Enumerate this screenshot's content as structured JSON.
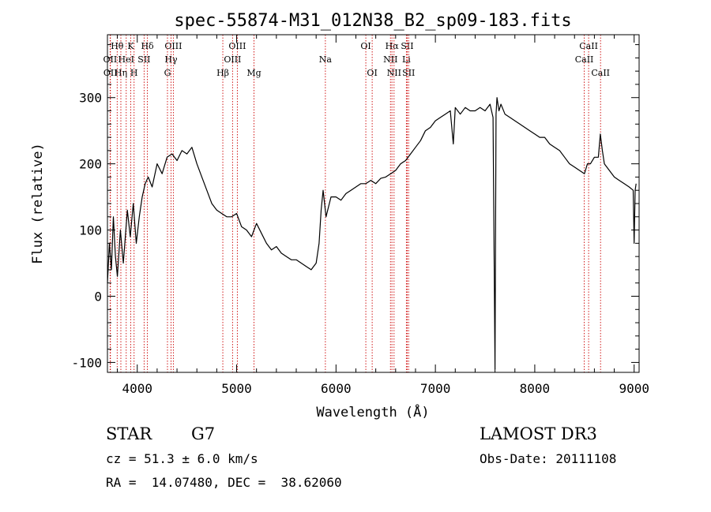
{
  "chart_data": {
    "type": "line",
    "title": "spec-55874-M31_012N38_B2_sp09-183.fits",
    "xlabel": "Wavelength (Å)",
    "ylabel": "Flux (relative)",
    "xlim": [
      3700,
      9050
    ],
    "ylim": [
      -115,
      395
    ],
    "xticks": [
      4000,
      5000,
      6000,
      7000,
      8000,
      9000
    ],
    "yticks": [
      -100,
      0,
      100,
      200,
      300
    ],
    "grid": false,
    "series": [
      {
        "name": "flux",
        "x": [
          3700,
          3720,
          3740,
          3760,
          3780,
          3800,
          3830,
          3860,
          3900,
          3930,
          3960,
          3990,
          4020,
          4050,
          4080,
          4110,
          4150,
          4200,
          4250,
          4300,
          4350,
          4400,
          4450,
          4500,
          4550,
          4600,
          4650,
          4700,
          4750,
          4800,
          4850,
          4900,
          4950,
          5000,
          5050,
          5100,
          5150,
          5200,
          5250,
          5300,
          5350,
          5400,
          5450,
          5500,
          5550,
          5600,
          5650,
          5700,
          5750,
          5800,
          5830,
          5850,
          5870,
          5900,
          5950,
          6000,
          6050,
          6100,
          6150,
          6200,
          6250,
          6300,
          6350,
          6400,
          6450,
          6500,
          6550,
          6600,
          6650,
          6700,
          6750,
          6800,
          6850,
          6900,
          6950,
          7000,
          7050,
          7100,
          7150,
          7180,
          7200,
          7250,
          7300,
          7350,
          7400,
          7450,
          7500,
          7550,
          7580,
          7600,
          7610,
          7620,
          7640,
          7660,
          7700,
          7750,
          7800,
          7850,
          7900,
          7950,
          8000,
          8050,
          8100,
          8150,
          8200,
          8250,
          8300,
          8350,
          8400,
          8450,
          8500,
          8530,
          8560,
          8600,
          8640,
          8660,
          8680,
          8700,
          8750,
          8800,
          8850,
          8900,
          8950,
          8990,
          9000,
          9010,
          9020
        ],
        "values": [
          20,
          80,
          40,
          120,
          60,
          30,
          100,
          50,
          130,
          90,
          140,
          80,
          120,
          150,
          170,
          180,
          165,
          200,
          185,
          210,
          215,
          205,
          220,
          215,
          225,
          200,
          180,
          160,
          140,
          130,
          125,
          120,
          120,
          125,
          105,
          100,
          90,
          110,
          95,
          80,
          70,
          75,
          65,
          60,
          55,
          55,
          50,
          45,
          40,
          50,
          80,
          130,
          160,
          120,
          150,
          150,
          145,
          155,
          160,
          165,
          170,
          170,
          175,
          170,
          178,
          180,
          185,
          190,
          200,
          205,
          215,
          225,
          235,
          250,
          255,
          265,
          270,
          275,
          280,
          230,
          285,
          275,
          285,
          280,
          280,
          285,
          280,
          290,
          270,
          -110,
          275,
          300,
          280,
          290,
          275,
          270,
          265,
          260,
          255,
          250,
          245,
          240,
          240,
          230,
          225,
          220,
          210,
          200,
          195,
          190,
          185,
          200,
          200,
          210,
          210,
          245,
          220,
          200,
          190,
          180,
          175,
          170,
          165,
          160,
          80,
          160,
          170
        ],
        "color": "#000000"
      }
    ],
    "line_markers": [
      {
        "label": "Hθ",
        "wavelength": 3798,
        "row": 1
      },
      {
        "label": "OII",
        "wavelength": 3727,
        "row": 2
      },
      {
        "label": "OII",
        "wavelength": 3730,
        "row": 3
      },
      {
        "label": "HeI",
        "wavelength": 3889,
        "row": 2
      },
      {
        "label": "Hη",
        "wavelength": 3835,
        "row": 3
      },
      {
        "label": "K",
        "wavelength": 3934,
        "row": 1
      },
      {
        "label": "SII",
        "wavelength": 4069,
        "row": 2
      },
      {
        "label": "H",
        "wavelength": 3968,
        "row": 3
      },
      {
        "label": "Hδ",
        "wavelength": 4102,
        "row": 1
      },
      {
        "label": "OIII",
        "wavelength": 4363,
        "row": 1
      },
      {
        "label": "Hγ",
        "wavelength": 4340,
        "row": 2
      },
      {
        "label": "G",
        "wavelength": 4304,
        "row": 3
      },
      {
        "label": "Hβ",
        "wavelength": 4861,
        "row": 3
      },
      {
        "label": "OIII",
        "wavelength": 5007,
        "row": 1
      },
      {
        "label": "OIII",
        "wavelength": 4959,
        "row": 2
      },
      {
        "label": "Mg",
        "wavelength": 5175,
        "row": 3
      },
      {
        "label": "Na",
        "wavelength": 5893,
        "row": 2
      },
      {
        "label": "OI",
        "wavelength": 6300,
        "row": 1
      },
      {
        "label": "OI",
        "wavelength": 6364,
        "row": 3
      },
      {
        "label": "Hα",
        "wavelength": 6563,
        "row": 1
      },
      {
        "label": "NII",
        "wavelength": 6548,
        "row": 2
      },
      {
        "label": "NII",
        "wavelength": 6584,
        "row": 3
      },
      {
        "label": "SII",
        "wavelength": 6717,
        "row": 1
      },
      {
        "label": "Li",
        "wavelength": 6708,
        "row": 2
      },
      {
        "label": "SII",
        "wavelength": 6731,
        "row": 3
      },
      {
        "label": "CaII",
        "wavelength": 8542,
        "row": 1
      },
      {
        "label": "CaII",
        "wavelength": 8498,
        "row": 2
      },
      {
        "label": "CaII",
        "wavelength": 8662,
        "row": 3
      }
    ]
  },
  "info": {
    "object_class": "STAR",
    "subclass": "G7",
    "redshift": "cz = 51.3 ± 6.0 km/s",
    "coordinates": "RA =  14.07480, DEC =  38.62060",
    "survey": "LAMOST DR3",
    "obs_date": "Obs-Date: 20111108"
  }
}
